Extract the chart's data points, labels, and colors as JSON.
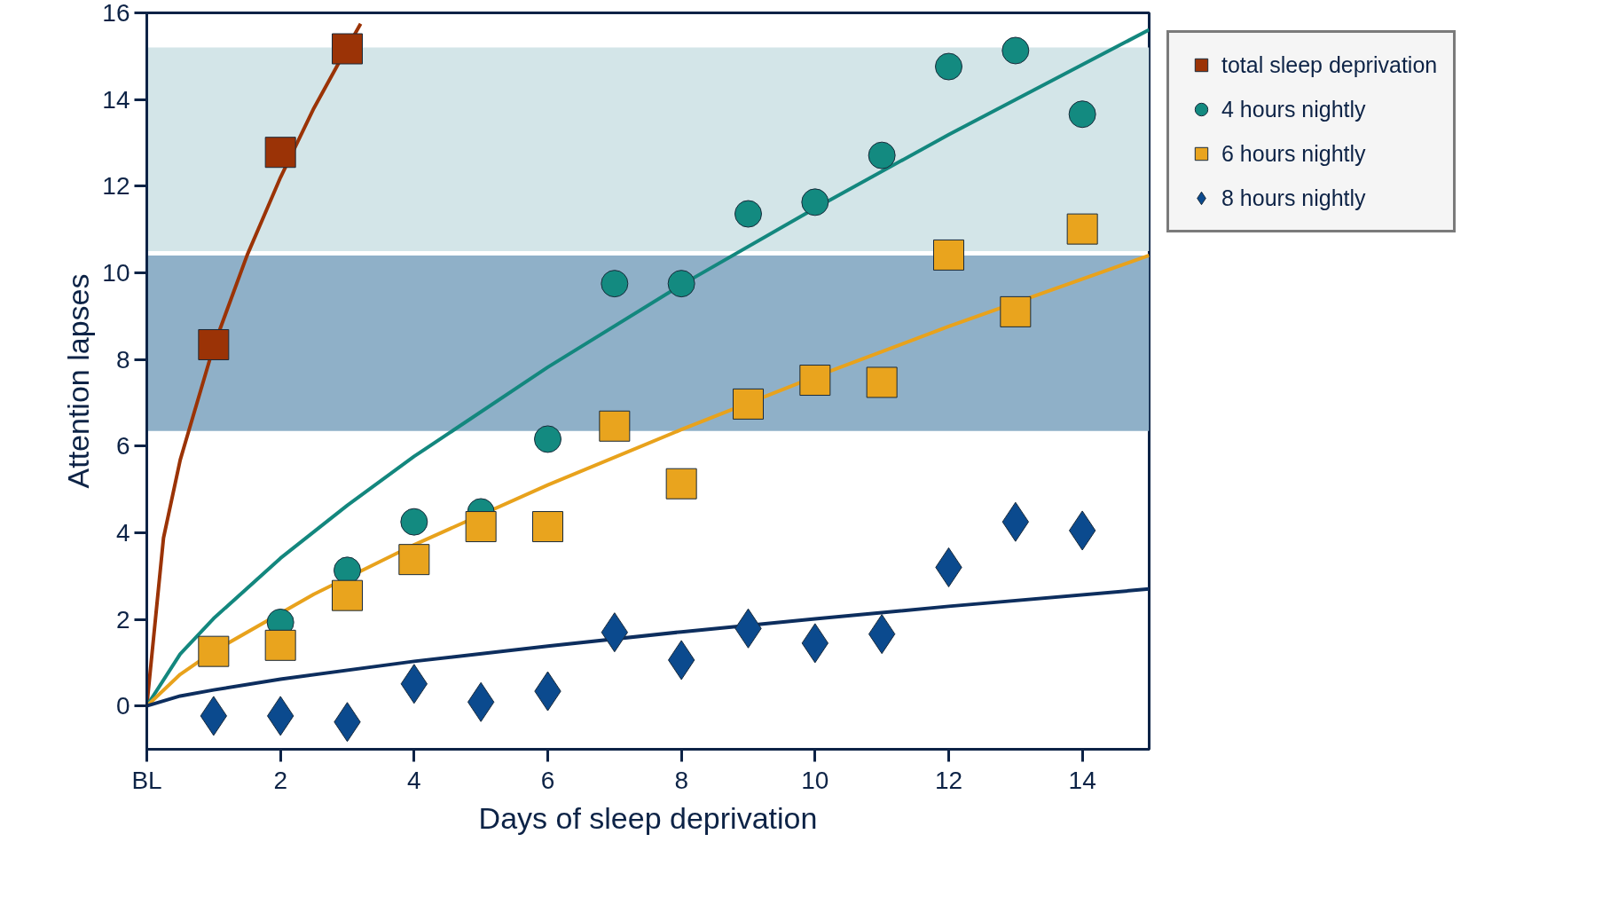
{
  "chart_data": {
    "type": "scatter",
    "xlabel": "Days of sleep deprivation",
    "ylabel": "Attention lapses",
    "xlim": [
      0,
      15
    ],
    "ylim": [
      -1,
      16
    ],
    "xticks": [
      {
        "value": 0,
        "label": "BL"
      },
      2,
      4,
      6,
      8,
      10,
      12,
      14
    ],
    "yticks": [
      0,
      2,
      4,
      6,
      8,
      10,
      12,
      14,
      16
    ],
    "grid": false,
    "legend": "top right",
    "bands": [
      {
        "axis": "y",
        "from": 6.35,
        "to": 10.4,
        "color": "#8fb0c8"
      },
      {
        "axis": "y",
        "from": 10.5,
        "to": 15.2,
        "color": "#d3e5e8"
      }
    ],
    "series": [
      {
        "name": "total sleep deprivation",
        "color": "#9b3306",
        "marker": "square",
        "x": [
          1,
          2,
          3
        ],
        "values": [
          8.34,
          12.78,
          15.17
        ]
      },
      {
        "name": "4 hours nightly",
        "color": "#138a80",
        "marker": "circle",
        "x": [
          2,
          3,
          4,
          5,
          6,
          7,
          8,
          9,
          10,
          11,
          12,
          13,
          14
        ],
        "values": [
          1.93,
          3.13,
          4.25,
          4.48,
          6.16,
          9.75,
          9.75,
          11.36,
          11.63,
          12.71,
          14.76,
          15.13,
          13.66
        ]
      },
      {
        "name": "6 hours nightly",
        "color": "#e9a41e",
        "marker": "square",
        "x": [
          1,
          2,
          3,
          4,
          5,
          6,
          7,
          8,
          9,
          10,
          11,
          12,
          13,
          14
        ],
        "values": [
          1.26,
          1.4,
          2.55,
          3.38,
          4.14,
          4.14,
          6.46,
          5.13,
          6.97,
          7.52,
          7.47,
          10.41,
          9.1,
          11.01
        ]
      },
      {
        "name": "8 hours nightly",
        "color": "#0b4a8e",
        "marker": "diamond",
        "x": [
          1,
          2,
          3,
          4,
          5,
          6,
          7,
          8,
          9,
          10,
          11,
          12,
          13,
          14
        ],
        "values": [
          -0.23,
          -0.23,
          -0.37,
          0.51,
          0.09,
          0.34,
          1.7,
          1.06,
          1.79,
          1.45,
          1.66,
          3.2,
          4.25,
          4.05
        ]
      },
      {
        "type": "line",
        "color": "#9b3306",
        "x": [
          0,
          0.25,
          0.5,
          1,
          1.5,
          2,
          2.5,
          3,
          3.2
        ],
        "values": [
          0,
          3.88,
          5.68,
          8.3,
          10.4,
          12.2,
          13.8,
          15.2,
          15.75
        ]
      },
      {
        "type": "line",
        "color": "#13877e",
        "x": [
          0,
          0.5,
          1,
          2,
          3,
          4,
          6,
          8,
          10,
          12,
          15
        ],
        "values": [
          0,
          1.2,
          2.02,
          3.41,
          4.63,
          5.76,
          7.82,
          9.72,
          11.49,
          13.19,
          15.61
        ]
      },
      {
        "type": "line",
        "color": "#e8a21c",
        "x": [
          0,
          0.5,
          1,
          2.5,
          4,
          6,
          8,
          10,
          12,
          15
        ],
        "values": [
          0,
          0.73,
          1.26,
          2.58,
          3.72,
          5.1,
          6.38,
          7.6,
          8.76,
          10.4
        ]
      },
      {
        "type": "line",
        "color": "#0d2e5e",
        "x": [
          0,
          0.5,
          1,
          2,
          4,
          6,
          8,
          10,
          12,
          15
        ],
        "values": [
          0,
          0.23,
          0.37,
          0.62,
          1.03,
          1.38,
          1.71,
          2.01,
          2.3,
          2.7
        ]
      }
    ]
  }
}
